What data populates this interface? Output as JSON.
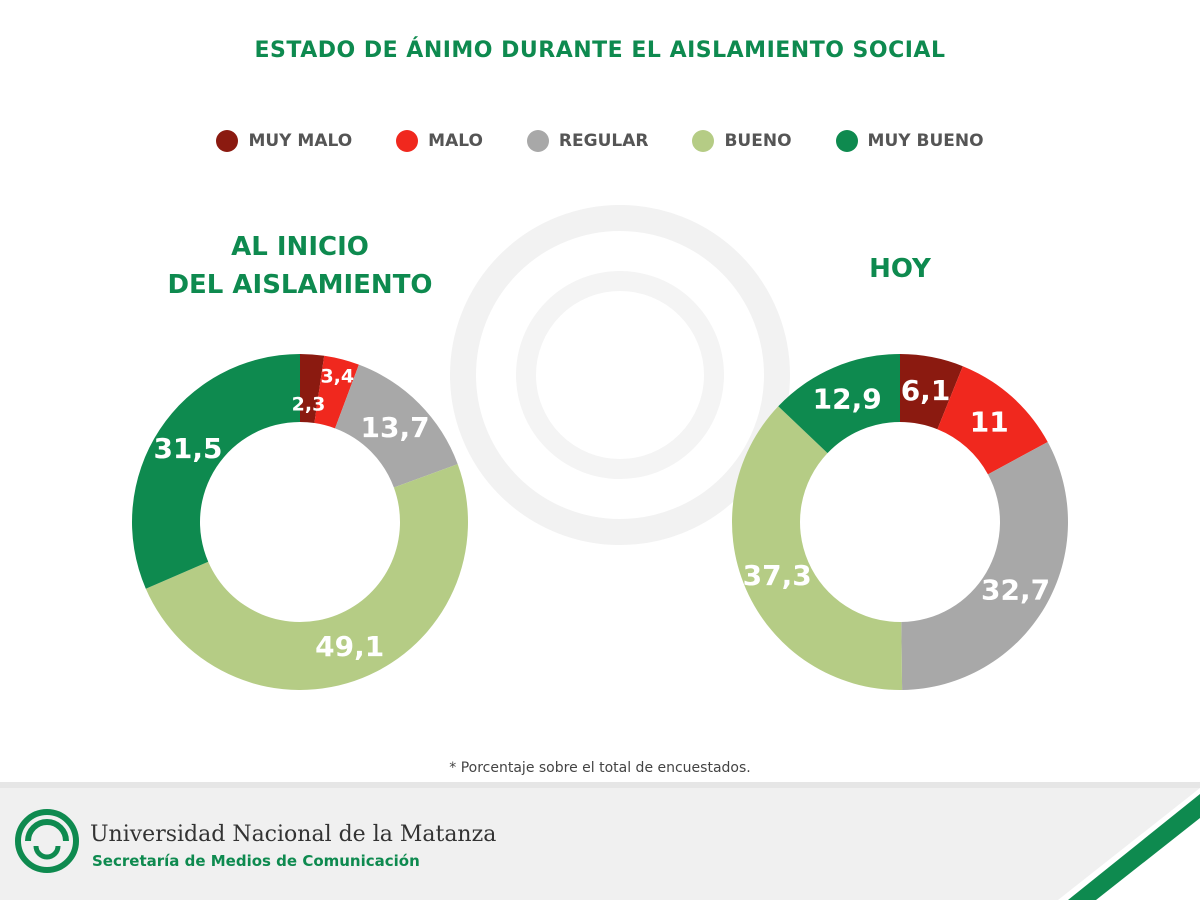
{
  "title": "ESTADO DE ÁNIMO DURANTE EL AISLAMIENTO SOCIAL",
  "legend": [
    {
      "label": "MUY MALO",
      "color": "#8b1a10"
    },
    {
      "label": "MALO",
      "color": "#f0281e"
    },
    {
      "label": "REGULAR",
      "color": "#a8a8a8"
    },
    {
      "label": "BUENO",
      "color": "#b5cc85"
    },
    {
      "label": "MUY BUENO",
      "color": "#0e8a4f"
    }
  ],
  "chart_data": [
    {
      "type": "pie",
      "title_line1": "AL INICIO",
      "title_line2": "DEL AISLAMIENTO",
      "categories": [
        "MUY MALO",
        "MALO",
        "REGULAR",
        "BUENO",
        "MUY BUENO"
      ],
      "values": [
        2.3,
        3.4,
        13.7,
        49.1,
        31.5
      ],
      "labels": [
        "2,3",
        "3,4",
        "13,7",
        "49,1",
        "31,5"
      ]
    },
    {
      "type": "pie",
      "title": "HOY",
      "categories": [
        "MUY MALO",
        "MALO",
        "REGULAR",
        "BUENO",
        "MUY BUENO"
      ],
      "values": [
        6.1,
        11,
        32.7,
        37.3,
        12.9
      ],
      "labels": [
        "6,1",
        "11",
        "32,7",
        "37,3",
        "12,9"
      ]
    }
  ],
  "footnote": "* Porcentaje sobre el total de encuestados.",
  "footer": {
    "university": "Universidad Nacional de la Matanza",
    "department": "Secretaría de Medios de Comunicación"
  }
}
